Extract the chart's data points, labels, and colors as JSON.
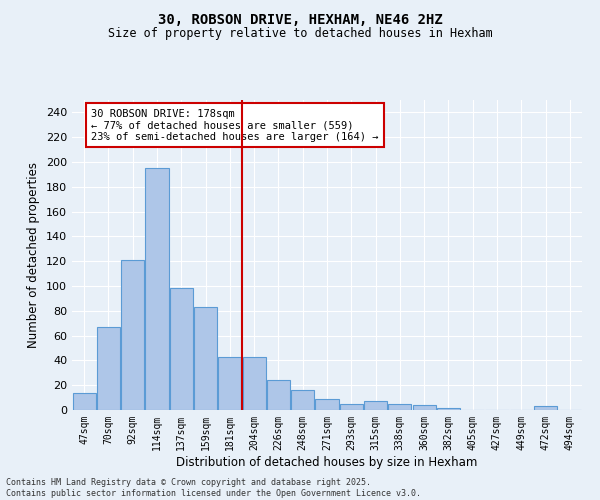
{
  "title": "30, ROBSON DRIVE, HEXHAM, NE46 2HZ",
  "subtitle": "Size of property relative to detached houses in Hexham",
  "xlabel": "Distribution of detached houses by size in Hexham",
  "ylabel": "Number of detached properties",
  "bar_labels": [
    "47sqm",
    "70sqm",
    "92sqm",
    "114sqm",
    "137sqm",
    "159sqm",
    "181sqm",
    "204sqm",
    "226sqm",
    "248sqm",
    "271sqm",
    "293sqm",
    "315sqm",
    "338sqm",
    "360sqm",
    "382sqm",
    "405sqm",
    "427sqm",
    "449sqm",
    "472sqm",
    "494sqm"
  ],
  "bar_values": [
    14,
    67,
    121,
    195,
    98,
    83,
    43,
    43,
    24,
    16,
    9,
    5,
    7,
    5,
    4,
    2,
    0,
    0,
    0,
    3,
    0
  ],
  "bar_color": "#aec6e8",
  "bar_edge_color": "#5b9bd5",
  "vline_color": "#cc0000",
  "annotation_text": "30 ROBSON DRIVE: 178sqm\n← 77% of detached houses are smaller (559)\n23% of semi-detached houses are larger (164) →",
  "annotation_box_color": "#ffffff",
  "annotation_box_edge_color": "#cc0000",
  "ylim": [
    0,
    250
  ],
  "yticks": [
    0,
    20,
    40,
    60,
    80,
    100,
    120,
    140,
    160,
    180,
    200,
    220,
    240
  ],
  "bg_color": "#e8f0f8",
  "grid_color": "#ffffff",
  "footer": "Contains HM Land Registry data © Crown copyright and database right 2025.\nContains public sector information licensed under the Open Government Licence v3.0."
}
